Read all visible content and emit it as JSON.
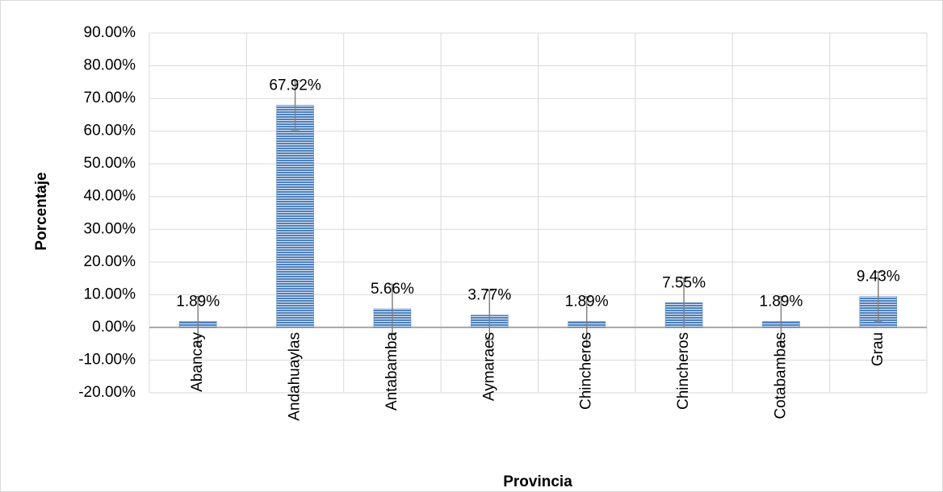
{
  "chart_data": {
    "type": "bar",
    "x_label": "Provincia",
    "y_label": "Porcentaje",
    "categories": [
      "Abancay",
      "Andahuaylas",
      "Antabamba",
      "Aymaraes",
      "Chincheros",
      "Chincheros",
      "Cotabambas",
      "Grau"
    ],
    "values": [
      1.89,
      67.92,
      5.66,
      3.77,
      1.89,
      7.55,
      1.89,
      9.43
    ],
    "value_labels": [
      "1.89%",
      "67.92%",
      "5.66%",
      "3.77%",
      "1.89%",
      "7.55%",
      "1.89%",
      "9.43%"
    ],
    "errors": [
      7.5,
      7.5,
      7.5,
      7.5,
      7.5,
      7.5,
      7.5,
      7.5
    ],
    "color": "#4f81bd",
    "ylim": [
      -20,
      90
    ],
    "yticks": [
      {
        "value": -20,
        "label": "-20.00%"
      },
      {
        "value": -10,
        "label": "-10.00%"
      },
      {
        "value": 0,
        "label": "0.00%"
      },
      {
        "value": 10,
        "label": "10.00%"
      },
      {
        "value": 20,
        "label": "20.00%"
      },
      {
        "value": 30,
        "label": "30.00%"
      },
      {
        "value": 40,
        "label": "40.00%"
      },
      {
        "value": 50,
        "label": "50.00%"
      },
      {
        "value": 60,
        "label": "60.00%"
      },
      {
        "value": 70,
        "label": "70.00%"
      },
      {
        "value": 80,
        "label": "80.00%"
      },
      {
        "value": 90,
        "label": "90.00%"
      }
    ],
    "grid": true
  }
}
